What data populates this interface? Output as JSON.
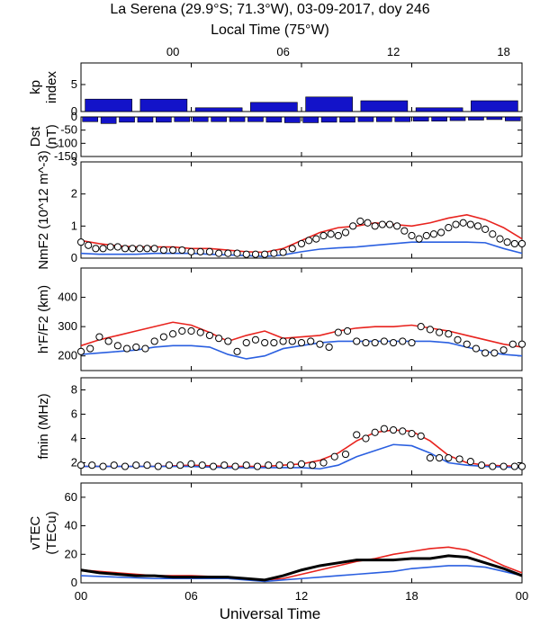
{
  "figure": {
    "title": "La Serena (29.9°S; 71.3°W), 03-09-2017, doy 246",
    "top_axis_label": "Local Time (75°W)",
    "top_ticks": [
      "00",
      "06",
      "12",
      "18"
    ],
    "top_ticks_ut": [
      5,
      11,
      17,
      23
    ],
    "bottom_axis_label": "Universal Time",
    "bottom_ticks": [
      "00",
      "06",
      "12",
      "18",
      "00"
    ],
    "bottom_ticks_ut": [
      0,
      6,
      12,
      18,
      24
    ],
    "colors": {
      "model_red": "#e8231e",
      "model_blue": "#2a5fe0",
      "bar": "#1313c9",
      "obs": "#000000"
    }
  },
  "chart_data": [
    {
      "type": "bar",
      "panel": "kp",
      "ylabel_lines": [
        "kp",
        "index"
      ],
      "ylim": [
        0,
        9
      ],
      "yticks": [
        "0",
        "5"
      ],
      "yticks_values": [
        0,
        5
      ],
      "x_ut": [
        1.5,
        4.5,
        7.5,
        10.5,
        13.5,
        16.5,
        19.5,
        22.5
      ],
      "values": [
        2.3,
        2.3,
        0.7,
        1.7,
        2.7,
        2.0,
        0.7,
        2.0
      ]
    },
    {
      "type": "bar",
      "panel": "Dst",
      "ylabel_lines": [
        "Dst",
        "(nT)"
      ],
      "ylim": [
        -150,
        0
      ],
      "yticks": [
        "0",
        "-50",
        "-100",
        "-150"
      ],
      "yticks_values": [
        0,
        -50,
        -100,
        -150
      ],
      "x_ut": [
        0.5,
        1.5,
        2.5,
        3.5,
        4.5,
        5.5,
        6.5,
        7.5,
        8.5,
        9.5,
        10.5,
        11.5,
        12.5,
        13.5,
        14.5,
        15.5,
        16.5,
        17.5,
        18.5,
        19.5,
        20.5,
        21.5,
        22.5,
        23.5
      ],
      "values": [
        -18,
        -25,
        -20,
        -20,
        -20,
        -18,
        -18,
        -18,
        -18,
        -18,
        -20,
        -22,
        -22,
        -20,
        -20,
        -18,
        -18,
        -18,
        -16,
        -16,
        -14,
        -12,
        -10,
        -15
      ]
    },
    {
      "type": "line",
      "panel": "NmF2",
      "ylabel": "NmF2 (10^12 m^-3)",
      "ylim": [
        0,
        3
      ],
      "yticks": [
        "0",
        "1",
        "2",
        "3"
      ],
      "yticks_values": [
        0,
        1,
        2,
        3
      ],
      "series": [
        {
          "color": "red",
          "x": [
            0,
            1,
            2,
            3,
            4,
            5,
            6,
            7,
            8,
            9,
            10,
            11,
            12,
            13,
            14,
            15,
            16,
            17,
            18,
            19,
            20,
            21,
            22,
            23,
            24
          ],
          "y": [
            0.55,
            0.45,
            0.38,
            0.35,
            0.35,
            0.35,
            0.3,
            0.3,
            0.25,
            0.2,
            0.18,
            0.3,
            0.55,
            0.8,
            0.95,
            1.0,
            1.1,
            1.05,
            1.0,
            1.1,
            1.25,
            1.35,
            1.2,
            0.95,
            0.6
          ]
        },
        {
          "color": "blue",
          "x": [
            0,
            1,
            2,
            3,
            4,
            5,
            6,
            7,
            8,
            9,
            10,
            11,
            12,
            13,
            14,
            15,
            16,
            17,
            18,
            19,
            20,
            21,
            22,
            23,
            24
          ],
          "y": [
            0.15,
            0.12,
            0.12,
            0.12,
            0.15,
            0.15,
            0.15,
            0.12,
            0.1,
            0.08,
            0.05,
            0.1,
            0.2,
            0.28,
            0.32,
            0.35,
            0.4,
            0.45,
            0.5,
            0.5,
            0.5,
            0.5,
            0.48,
            0.3,
            0.15
          ]
        },
        {
          "color": "obs",
          "x": [
            0,
            0.4,
            0.8,
            1.2,
            1.6,
            2,
            2.4,
            2.8,
            3.2,
            3.6,
            4,
            4.5,
            5,
            5.5,
            6,
            6.5,
            7,
            7.5,
            8,
            8.5,
            9,
            9.5,
            10,
            10.5,
            11,
            11.5,
            12,
            12.4,
            12.8,
            13.2,
            13.6,
            14,
            14.4,
            14.8,
            15.2,
            15.6,
            16,
            16.4,
            16.8,
            17.2,
            17.6,
            18,
            18.4,
            18.8,
            19.2,
            19.6,
            20,
            20.4,
            20.8,
            21.2,
            21.6,
            22,
            22.4,
            22.8,
            23.2,
            23.6,
            24
          ],
          "y": [
            0.5,
            0.4,
            0.3,
            0.3,
            0.35,
            0.35,
            0.3,
            0.3,
            0.3,
            0.3,
            0.3,
            0.25,
            0.25,
            0.25,
            0.2,
            0.2,
            0.2,
            0.15,
            0.15,
            0.15,
            0.12,
            0.12,
            0.12,
            0.15,
            0.18,
            0.3,
            0.45,
            0.55,
            0.6,
            0.7,
            0.75,
            0.7,
            0.8,
            1.0,
            1.15,
            1.1,
            1.0,
            1.05,
            1.05,
            1.0,
            0.85,
            0.7,
            0.6,
            0.7,
            0.75,
            0.8,
            0.95,
            1.05,
            1.1,
            1.05,
            1.0,
            0.9,
            0.75,
            0.6,
            0.5,
            0.45,
            0.45
          ]
        }
      ]
    },
    {
      "type": "line",
      "panel": "h'F/F2",
      "ylabel": "h'F/F2 (km)",
      "ylim": [
        150,
        500
      ],
      "yticks": [
        "200",
        "300",
        "400"
      ],
      "yticks_values": [
        200,
        300,
        400
      ],
      "series": [
        {
          "color": "red",
          "x": [
            0,
            1,
            2,
            3,
            4,
            5,
            6,
            7,
            8,
            9,
            10,
            11,
            12,
            13,
            14,
            15,
            16,
            17,
            18,
            19,
            20,
            21,
            22,
            23,
            24
          ],
          "y": [
            235,
            255,
            270,
            285,
            300,
            315,
            305,
            280,
            250,
            270,
            285,
            260,
            265,
            270,
            285,
            295,
            300,
            300,
            305,
            295,
            285,
            270,
            255,
            240,
            230
          ]
        },
        {
          "color": "blue",
          "x": [
            0,
            1,
            2,
            3,
            4,
            5,
            6,
            7,
            8,
            9,
            10,
            11,
            12,
            13,
            14,
            15,
            16,
            17,
            18,
            19,
            20,
            21,
            22,
            23,
            24
          ],
          "y": [
            205,
            210,
            215,
            220,
            230,
            235,
            235,
            230,
            205,
            190,
            200,
            225,
            235,
            245,
            250,
            250,
            250,
            250,
            250,
            250,
            245,
            230,
            215,
            205,
            200
          ]
        },
        {
          "color": "obs",
          "x": [
            0,
            0.5,
            1,
            1.5,
            2,
            2.5,
            3,
            3.5,
            4,
            4.5,
            5,
            5.5,
            6,
            6.5,
            7,
            7.5,
            8,
            8.5,
            9,
            9.5,
            10,
            10.5,
            11,
            11.5,
            12,
            12.5,
            13,
            13.5,
            14,
            14.5,
            15,
            15.5,
            16,
            16.5,
            17,
            17.5,
            18,
            18.5,
            19,
            19.5,
            20,
            20.5,
            21,
            21.5,
            22,
            22.5,
            23,
            23.5,
            24
          ],
          "y": [
            215,
            225,
            265,
            250,
            235,
            225,
            230,
            225,
            250,
            265,
            275,
            285,
            285,
            280,
            270,
            260,
            250,
            215,
            245,
            255,
            245,
            245,
            250,
            250,
            245,
            250,
            240,
            230,
            280,
            285,
            250,
            245,
            245,
            250,
            245,
            250,
            245,
            300,
            290,
            280,
            275,
            255,
            240,
            225,
            210,
            210,
            220,
            240,
            240
          ]
        }
      ]
    },
    {
      "type": "line",
      "panel": "fmin",
      "ylabel": "fmin (MHz)",
      "ylim": [
        1,
        9
      ],
      "yticks": [
        "2",
        "4",
        "6",
        "8"
      ],
      "yticks_values": [
        2,
        4,
        6,
        8
      ],
      "series": [
        {
          "color": "red",
          "x": [
            0,
            2,
            4,
            6,
            8,
            10,
            11,
            12,
            13,
            14,
            15,
            16,
            17,
            18,
            19,
            20,
            21,
            22,
            24
          ],
          "y": [
            1.7,
            1.7,
            1.7,
            1.8,
            1.7,
            1.7,
            1.8,
            1.9,
            2.2,
            2.8,
            3.8,
            4.5,
            4.7,
            4.6,
            3.8,
            2.6,
            2.0,
            1.8,
            1.7
          ]
        },
        {
          "color": "blue",
          "x": [
            0,
            2,
            4,
            6,
            8,
            10,
            11,
            12,
            13,
            14,
            15,
            16,
            17,
            18,
            19,
            20,
            21,
            22,
            24
          ],
          "y": [
            1.7,
            1.7,
            1.7,
            1.7,
            1.6,
            1.6,
            1.6,
            1.6,
            1.5,
            1.8,
            2.5,
            3.0,
            3.5,
            3.4,
            2.8,
            2.0,
            1.8,
            1.7,
            1.6
          ]
        },
        {
          "color": "obs",
          "x": [
            0,
            0.6,
            1.2,
            1.8,
            2.4,
            3,
            3.6,
            4.2,
            4.8,
            5.4,
            6,
            6.6,
            7.2,
            7.8,
            8.4,
            9,
            9.6,
            10.2,
            10.8,
            11.4,
            12,
            12.6,
            13.2,
            13.8,
            14.4,
            15,
            15.5,
            16,
            16.5,
            17,
            17.5,
            18,
            18.5,
            19,
            19.5,
            20,
            20.6,
            21.2,
            21.8,
            22.4,
            23,
            23.6,
            24
          ],
          "y": [
            1.8,
            1.8,
            1.7,
            1.8,
            1.7,
            1.8,
            1.8,
            1.7,
            1.8,
            1.8,
            1.9,
            1.8,
            1.7,
            1.8,
            1.7,
            1.8,
            1.7,
            1.8,
            1.8,
            1.8,
            1.9,
            1.8,
            2.0,
            2.5,
            2.7,
            4.3,
            4.0,
            4.5,
            4.8,
            4.7,
            4.6,
            4.4,
            4.2,
            2.4,
            2.4,
            2.4,
            2.3,
            2.1,
            1.8,
            1.7,
            1.7,
            1.7,
            1.7
          ]
        }
      ]
    },
    {
      "type": "line",
      "panel": "vTEC",
      "ylabel_lines": [
        "vTEC",
        "(TECu)"
      ],
      "ylim": [
        0,
        70
      ],
      "yticks": [
        "0",
        "20",
        "40",
        "60"
      ],
      "yticks_values": [
        0,
        20,
        40,
        60
      ],
      "series": [
        {
          "color": "red",
          "x": [
            0,
            2,
            4,
            6,
            8,
            10,
            11,
            12,
            13,
            14,
            15,
            16,
            17,
            18,
            19,
            20,
            21,
            22,
            23,
            24
          ],
          "y": [
            9,
            7,
            5,
            5,
            4,
            2,
            3,
            6,
            9,
            12,
            15,
            17,
            20,
            22,
            24,
            25,
            23,
            18,
            12,
            7
          ]
        },
        {
          "color": "blue",
          "x": [
            0,
            2,
            4,
            6,
            8,
            10,
            11,
            12,
            13,
            14,
            15,
            16,
            17,
            18,
            19,
            20,
            21,
            22,
            23,
            24
          ],
          "y": [
            5,
            4,
            3,
            3,
            3,
            1,
            2,
            3,
            4,
            5,
            6,
            7,
            8,
            10,
            11,
            12,
            12,
            11,
            8,
            5
          ]
        },
        {
          "color": "obs",
          "x": [
            0,
            1,
            2,
            3,
            4,
            5,
            6,
            7,
            8,
            9,
            10,
            11,
            12,
            13,
            14,
            15,
            16,
            17,
            18,
            19,
            20,
            21,
            22,
            23,
            24
          ],
          "y": [
            9,
            7,
            6,
            5,
            5,
            4,
            4,
            4,
            4,
            3,
            2,
            5,
            9,
            12,
            14,
            16,
            16,
            16,
            17,
            17,
            19,
            18,
            14,
            10,
            5
          ]
        }
      ]
    }
  ]
}
